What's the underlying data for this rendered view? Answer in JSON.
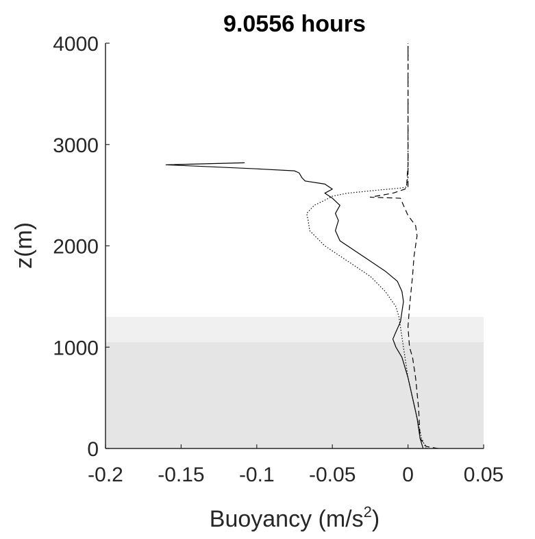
{
  "chart_data": {
    "type": "line",
    "title": "9.0556 hours",
    "xlabel": "Buoyancy (m/s",
    "xlabel_superscript": "2",
    "xlabel_suffix": ")",
    "ylabel": "z(m)",
    "xlim": [
      -0.2,
      0.05
    ],
    "ylim": [
      0,
      4000
    ],
    "x_ticks": [
      -0.2,
      -0.15,
      -0.1,
      -0.05,
      0,
      0.05
    ],
    "x_tick_labels": [
      "-0.2",
      "-0.15",
      "-0.1",
      "-0.05",
      "0",
      "0.05"
    ],
    "y_ticks": [
      0,
      1000,
      2000,
      3000,
      4000
    ],
    "y_tick_labels": [
      "0",
      "1000",
      "2000",
      "3000",
      "4000"
    ],
    "grid": false,
    "legend": false,
    "shaded_bands": [
      {
        "y0": 0,
        "y1": 1050,
        "color": "#e5e5e5"
      },
      {
        "y0": 1050,
        "y1": 1300,
        "color": "#f0f0f0"
      }
    ],
    "series": [
      {
        "style": "solid",
        "points": [
          [
            0.01,
            0
          ],
          [
            0.008,
            100
          ],
          [
            0.006,
            300
          ],
          [
            0.003,
            500
          ],
          [
            0.0,
            700
          ],
          [
            -0.004,
            900
          ],
          [
            -0.008,
            1000
          ],
          [
            -0.01,
            1080
          ],
          [
            -0.008,
            1150
          ],
          [
            -0.005,
            1250
          ],
          [
            -0.004,
            1350
          ],
          [
            -0.003,
            1450
          ],
          [
            -0.004,
            1550
          ],
          [
            -0.007,
            1650
          ],
          [
            -0.015,
            1750
          ],
          [
            -0.025,
            1850
          ],
          [
            -0.035,
            1950
          ],
          [
            -0.045,
            2050
          ],
          [
            -0.048,
            2150
          ],
          [
            -0.046,
            2250
          ],
          [
            -0.048,
            2320
          ],
          [
            -0.045,
            2400
          ],
          [
            -0.05,
            2470
          ],
          [
            -0.055,
            2520
          ],
          [
            -0.05,
            2560
          ],
          [
            -0.055,
            2610
          ],
          [
            -0.068,
            2640
          ],
          [
            -0.07,
            2670
          ],
          [
            -0.072,
            2720
          ],
          [
            -0.075,
            2740
          ],
          [
            -0.1,
            2760
          ],
          [
            -0.16,
            2800
          ],
          [
            -0.108,
            2820
          ]
        ]
      },
      {
        "style": "dotted",
        "points": [
          [
            0.012,
            0
          ],
          [
            0.009,
            100
          ],
          [
            0.006,
            300
          ],
          [
            0.003,
            500
          ],
          [
            0.0,
            700
          ],
          [
            -0.002,
            900
          ],
          [
            -0.003,
            1000
          ],
          [
            -0.004,
            1100
          ],
          [
            -0.005,
            1200
          ],
          [
            -0.006,
            1300
          ],
          [
            -0.008,
            1400
          ],
          [
            -0.015,
            1550
          ],
          [
            -0.025,
            1700
          ],
          [
            -0.04,
            1850
          ],
          [
            -0.055,
            2000
          ],
          [
            -0.065,
            2150
          ],
          [
            -0.066,
            2250
          ],
          [
            -0.067,
            2320
          ],
          [
            -0.062,
            2400
          ],
          [
            -0.055,
            2450
          ],
          [
            -0.05,
            2490
          ],
          [
            -0.04,
            2520
          ],
          [
            -0.02,
            2550
          ],
          [
            -0.005,
            2570
          ],
          [
            -0.001,
            2580
          ],
          [
            0.0,
            2700
          ],
          [
            0.0,
            2900
          ]
        ]
      },
      {
        "style": "dashed",
        "points": [
          [
            0.02,
            0
          ],
          [
            0.012,
            20
          ],
          [
            0.008,
            100
          ],
          [
            0.007,
            400
          ],
          [
            0.005,
            700
          ],
          [
            0.003,
            900
          ],
          [
            0.001,
            1000
          ],
          [
            0.0,
            1200
          ],
          [
            0.001,
            1400
          ],
          [
            0.002,
            1550
          ],
          [
            0.003,
            1700
          ],
          [
            0.004,
            1900
          ],
          [
            0.006,
            2100
          ],
          [
            0.005,
            2200
          ],
          [
            0.0,
            2300
          ],
          [
            -0.003,
            2400
          ],
          [
            -0.005,
            2470
          ],
          [
            -0.025,
            2480
          ],
          [
            -0.01,
            2520
          ],
          [
            -0.002,
            2560
          ],
          [
            -0.001,
            2580
          ],
          [
            0.0,
            2800
          ],
          [
            0.0,
            3200
          ],
          [
            0.0,
            3600
          ],
          [
            0.0,
            4000
          ]
        ]
      },
      {
        "style": "dashdot",
        "points": [
          [
            0.0,
            2580
          ],
          [
            0.0,
            3000
          ],
          [
            0.0,
            3500
          ],
          [
            0.0,
            4000
          ]
        ]
      }
    ]
  }
}
